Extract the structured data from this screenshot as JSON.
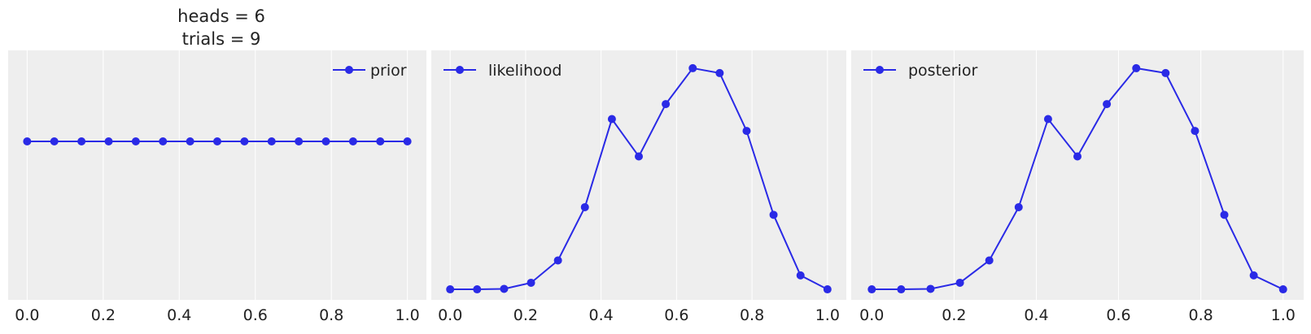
{
  "figure": {
    "title_lines": [
      "heads = 6",
      "trials = 9"
    ]
  },
  "colors": {
    "series": "#2a2ae6",
    "panel_background": "#eeeeee",
    "grid": "#ffffff"
  },
  "chart_data": [
    {
      "type": "line",
      "title": "",
      "xlabel": "",
      "ylabel": "",
      "xlim": [
        -0.05,
        1.05
      ],
      "ylim": [
        0,
        0.105
      ],
      "yticks_visible": false,
      "grid": "vertical",
      "legend": "top-right",
      "xticks": [
        "0.0",
        "0.2",
        "0.4",
        "0.6",
        "0.8",
        "1.0"
      ],
      "series": [
        {
          "name": "prior",
          "marker": "circle",
          "x": [
            0,
            0.0714,
            0.1429,
            0.2143,
            0.2857,
            0.3571,
            0.4286,
            0.5,
            0.5714,
            0.6429,
            0.7143,
            0.7857,
            0.8571,
            0.9286,
            1.0
          ],
          "y": [
            0.0667,
            0.0667,
            0.0667,
            0.0667,
            0.0667,
            0.0667,
            0.0667,
            0.0667,
            0.0667,
            0.0667,
            0.0667,
            0.0667,
            0.0667,
            0.0667,
            0.0667
          ]
        }
      ]
    },
    {
      "type": "line",
      "title": "",
      "xlabel": "",
      "ylabel": "",
      "xlim": [
        -0.05,
        1.05
      ],
      "ylim": [
        -0.013,
        0.295
      ],
      "yticks_visible": false,
      "grid": "vertical",
      "legend": "top-left",
      "xticks": [
        "0.0",
        "0.2",
        "0.4",
        "0.6",
        "0.8",
        "1.0"
      ],
      "series": [
        {
          "name": "likelihood",
          "marker": "circle",
          "x": [
            0,
            0.0714,
            0.1429,
            0.2143,
            0.2857,
            0.3571,
            0.4286,
            0.5,
            0.5714,
            0.6429,
            0.7143,
            0.7857,
            0.8571,
            0.9286,
            1.0
          ],
          "y": [
            0,
            0.0,
            0.0006,
            0.0081,
            0.0357,
            0.1014,
            0.2102,
            0.1641,
            0.2287,
            0.273,
            0.267,
            0.1956,
            0.092,
            0.0172,
            0
          ]
        }
      ]
    },
    {
      "type": "line",
      "title": "",
      "xlabel": "",
      "ylabel": "",
      "xlim": [
        -0.05,
        1.05
      ],
      "ylim": [
        -0.013,
        0.295
      ],
      "yticks_visible": false,
      "grid": "vertical",
      "legend": "top-left",
      "xticks": [
        "0.0",
        "0.2",
        "0.4",
        "0.6",
        "0.8",
        "1.0"
      ],
      "series": [
        {
          "name": "posterior",
          "marker": "circle",
          "x": [
            0,
            0.0714,
            0.1429,
            0.2143,
            0.2857,
            0.3571,
            0.4286,
            0.5,
            0.5714,
            0.6429,
            0.7143,
            0.7857,
            0.8571,
            0.9286,
            1.0
          ],
          "y": [
            0,
            0.0,
            0.0006,
            0.0081,
            0.0357,
            0.1014,
            0.2102,
            0.1641,
            0.2287,
            0.273,
            0.267,
            0.1956,
            0.092,
            0.0172,
            0
          ]
        }
      ]
    }
  ]
}
